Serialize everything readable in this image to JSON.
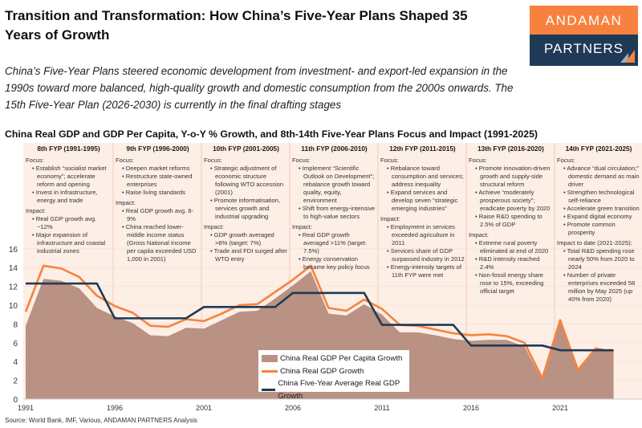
{
  "title": "Transition and Transformation: How China’s Five-Year Plans Shaped 35 Years of Growth",
  "subtitle": "China’s Five-Year Plans steered economic development from investment- and export-led expansion in the 1990s toward more balanced, high-quality growth and domestic consumption from the 2000s onwards. The 15th Five-Year Plan (2026-2030) is currently in the final drafting stages",
  "logo": {
    "line1": "ANDAMAN",
    "line2": "PARTNERS"
  },
  "source": "Source: World Bank, IMF, Various, ANDAMAN PARTNERS Analysis",
  "colors": {
    "orange": "#f7823f",
    "navy": "#1e3a57",
    "area": "#b99284",
    "panel": "#fdeee6"
  },
  "plans": [
    {
      "title": "8th FYP (1991-1995)",
      "focus_label": "Focus:",
      "focus": [
        "Establish “socialist market economy”; accelerate reform and opening",
        "Invest in infrastructure, energy and trade"
      ],
      "impact_label": "Impact:",
      "impact": [
        "Real GDP growth avg. ~12%",
        "Major expansion of infrastructure and coastal industrial zones"
      ]
    },
    {
      "title": "9th FYP (1996-2000)",
      "focus_label": "Focus:",
      "focus": [
        "Deepen market reforms",
        "Restructure state-owned enterprises",
        "Raise living standards"
      ],
      "impact_label": "Impact:",
      "impact": [
        "Real GDP growth avg. 8-9%",
        "China reached lower-middle income status (Gross National Income per capita exceeded USD 1,000 in 2001)"
      ]
    },
    {
      "title": "10th FYP (2001-2005)",
      "focus_label": "Focus:",
      "focus": [
        "Strategic adjustment of economic structure following WTO accession (2001)",
        "Promote informatisation, services growth and industrial upgrading"
      ],
      "impact_label": "Impact:",
      "impact": [
        "GDP growth averaged >8% (target: 7%)",
        "Trade and FDI surged after WTO entry"
      ]
    },
    {
      "title": "11th FYP (2006-2010)",
      "focus_label": "Focus:",
      "focus": [
        "Implement “Scientific Outlook on Development”; rebalance growth toward quality, equity, environment",
        "Shift from energy-intensive to high-value sectors"
      ],
      "impact_label": "Impact:",
      "impact": [
        "Real GDP growth averaged >11% (target: 7.5%)",
        "Energy conservation became key policy focus"
      ]
    },
    {
      "title": "12th FYP (2011-2015)",
      "focus_label": "Focus:",
      "focus": [
        "Rebalance toward consumption and services; address inequality",
        "Expand services and develop seven “strategic emerging industries”"
      ],
      "impact_label": "Impact:",
      "impact": [
        "Employment in services exceeded agriculture in 2011",
        "Services share of GDP surpassed industry in 2012",
        "Energy-intensity targets of 11th FYP were met"
      ]
    },
    {
      "title": "13th FYP (2016-2020)",
      "focus_label": "Focus:",
      "focus": [
        "Promote innovation-driven growth and supply-side structural reform",
        "Achieve “moderately prosperous society”; eradicate poverty by 2020",
        "Raise R&D spending to 2.5% of GDP"
      ],
      "impact_label": "Impact:",
      "impact": [
        "Extreme rural poverty eliminated at end of 2020",
        "R&D intensity reached 2.4%",
        "Non-fossil energy share rose to 15%, exceeding official target"
      ]
    },
    {
      "title": "14th FYP (2021-2025)",
      "focus_label": "Focus:",
      "focus": [
        "Advance “dual circulation;” domestic demand as main driver",
        "Strengthen technological self-reliance",
        "Accelerate green transition",
        "Expand digital economy",
        "Promote common prosperity"
      ],
      "impact_label": "Impact to date (2021-2025):",
      "impact": [
        "Total R&D spending rose nearly 50% from 2020 to 2024",
        "Number of private enterprises exceeded 58 million by May 2025 (up 40% from 2020)"
      ]
    }
  ],
  "chart_data": {
    "type": "line",
    "title": "China Real GDP and GDP Per Capita, Y-o-Y % Growth, and 8th-14th Five-Year Plans Focus and Impact (1991-2025)",
    "x": [
      1991,
      1992,
      1993,
      1994,
      1995,
      1996,
      1997,
      1998,
      1999,
      2000,
      2001,
      2002,
      2003,
      2004,
      2005,
      2006,
      2007,
      2008,
      2009,
      2010,
      2011,
      2012,
      2013,
      2014,
      2015,
      2016,
      2017,
      2018,
      2019,
      2020,
      2021,
      2022,
      2023,
      2024
    ],
    "xticks": [
      "1991",
      "1996",
      "2001",
      "2006",
      "2011",
      "2016",
      "2021"
    ],
    "yticks": [
      "0",
      "2",
      "4",
      "6",
      "8",
      "10",
      "12",
      "14",
      "16"
    ],
    "ylim": [
      0,
      16
    ],
    "legend": "bottom-center",
    "series": [
      {
        "name": "China Real GDP Per Capita Growth",
        "type": "area",
        "color": "#b99284",
        "values": [
          7.8,
          12.8,
          12.6,
          11.8,
          9.7,
          8.8,
          8.1,
          6.8,
          6.7,
          7.6,
          7.5,
          8.4,
          9.3,
          9.4,
          10.7,
          12.1,
          13.6,
          9.1,
          8.9,
          10.1,
          9.0,
          7.1,
          7.1,
          6.8,
          6.4,
          6.2,
          6.3,
          6.3,
          5.6,
          2.0,
          8.4,
          3.1,
          5.4,
          5.1
        ]
      },
      {
        "name": "China Real GDP Growth",
        "type": "line",
        "color": "#f7823f",
        "values": [
          9.3,
          14.2,
          13.9,
          13.0,
          11.0,
          9.9,
          9.2,
          7.8,
          7.7,
          8.5,
          8.3,
          9.1,
          10.0,
          10.1,
          11.4,
          12.7,
          14.2,
          9.7,
          9.4,
          10.6,
          9.6,
          7.9,
          7.8,
          7.4,
          7.0,
          6.8,
          6.9,
          6.7,
          6.0,
          2.2,
          8.4,
          3.1,
          5.4,
          5.0
        ]
      },
      {
        "name": "China Five-Year Average Real GDP Growth",
        "type": "line",
        "color": "#1e3a57",
        "values": [
          12.3,
          12.3,
          12.3,
          12.3,
          12.3,
          8.6,
          8.6,
          8.6,
          8.6,
          8.6,
          9.8,
          9.8,
          9.8,
          9.8,
          9.8,
          11.3,
          11.3,
          11.3,
          11.3,
          11.3,
          7.9,
          7.9,
          7.9,
          7.9,
          7.9,
          5.7,
          5.7,
          5.7,
          5.7,
          5.7,
          5.2,
          5.2,
          5.2,
          5.2
        ]
      }
    ]
  }
}
